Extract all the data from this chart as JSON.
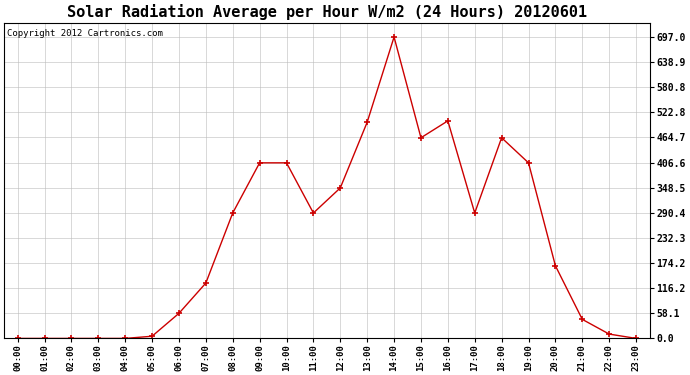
{
  "title": "Solar Radiation Average per Hour W/m2 (24 Hours) 20120601",
  "copyright": "Copyright 2012 Cartronics.com",
  "hours": [
    "00:00",
    "01:00",
    "02:00",
    "03:00",
    "04:00",
    "05:00",
    "06:00",
    "07:00",
    "08:00",
    "09:00",
    "10:00",
    "11:00",
    "12:00",
    "13:00",
    "14:00",
    "15:00",
    "16:00",
    "17:00",
    "18:00",
    "19:00",
    "20:00",
    "21:00",
    "22:00",
    "23:00"
  ],
  "values": [
    0,
    0,
    0,
    0,
    0,
    5,
    58,
    128,
    290,
    406,
    406,
    290,
    348,
    500,
    697,
    464,
    503,
    290,
    464,
    406,
    168,
    44,
    10,
    0
  ],
  "line_color": "#cc0000",
  "marker": "+",
  "marker_size": 5,
  "marker_color": "#000000",
  "background_color": "#ffffff",
  "plot_bg_color": "#ffffff",
  "grid_color": "#bbbbbb",
  "title_fontsize": 11,
  "ylabel_ticks": [
    0.0,
    58.1,
    116.2,
    174.2,
    232.3,
    290.4,
    348.5,
    406.6,
    464.7,
    522.8,
    580.8,
    638.9,
    697.0
  ],
  "ylim": [
    0,
    730
  ],
  "copyright_fontsize": 6.5,
  "fig_width": 6.9,
  "fig_height": 3.75,
  "dpi": 100
}
